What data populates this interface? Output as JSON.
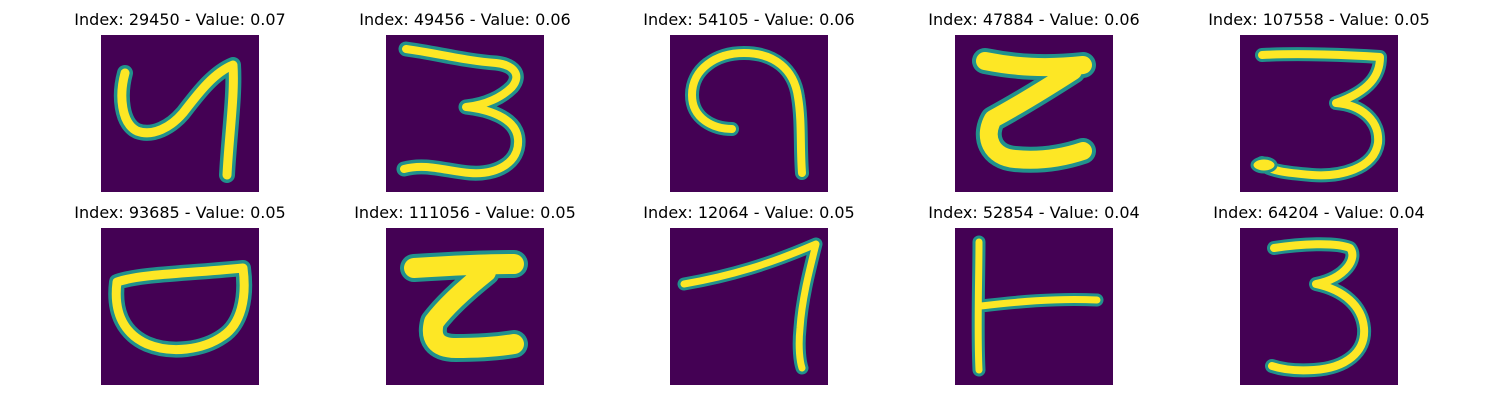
{
  "colors": {
    "background": "#440154",
    "stroke": "#fde725",
    "edge": "#21918c",
    "edge_dark": "#3b528b"
  },
  "panels": [
    {
      "index": "29450",
      "value": "0.07",
      "title": "Index: 29450 - Value: 0.07",
      "glyph": "glyph-4"
    },
    {
      "index": "49456",
      "value": "0.06",
      "title": "Index: 49456 - Value: 0.06",
      "glyph": "glyph-3"
    },
    {
      "index": "54105",
      "value": "0.06",
      "title": "Index: 54105 - Value: 0.06",
      "glyph": "glyph-9"
    },
    {
      "index": "47884",
      "value": "0.06",
      "title": "Index: 47884 - Value: 0.06",
      "glyph": "glyph-z"
    },
    {
      "index": "107558",
      "value": "0.05",
      "title": "Index: 107558 - Value: 0.05",
      "glyph": "glyph-3-wide"
    },
    {
      "index": "93685",
      "value": "0.05",
      "title": "Index: 93685 - Value: 0.05",
      "glyph": "glyph-bowl"
    },
    {
      "index": "111056",
      "value": "0.05",
      "title": "Index: 111056 - Value: 0.05",
      "glyph": "glyph-z-thick"
    },
    {
      "index": "12064",
      "value": "0.05",
      "title": "Index: 12064 - Value: 0.05",
      "glyph": "glyph-7"
    },
    {
      "index": "52854",
      "value": "0.04",
      "title": "Index: 52854 - Value: 0.04",
      "glyph": "glyph-t"
    },
    {
      "index": "64204",
      "value": "0.04",
      "title": "Index: 64204 - Value: 0.04",
      "glyph": "glyph-3-tall"
    }
  ]
}
